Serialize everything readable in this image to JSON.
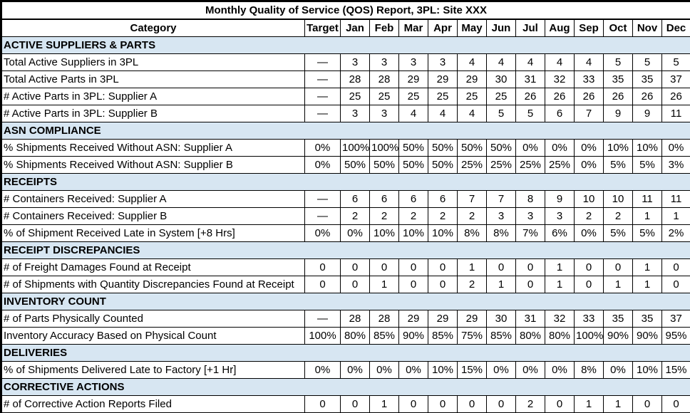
{
  "report": {
    "title": "Monthly Quality of Service (QOS) Report, 3PL: Site XXX",
    "columns": {
      "category": "Category",
      "target": "Target"
    },
    "months": [
      "Jan",
      "Feb",
      "Mar",
      "Apr",
      "May",
      "Jun",
      "Jul",
      "Aug",
      "Sep",
      "Oct",
      "Nov",
      "Dec"
    ],
    "colors": {
      "section_bg": "#D7E6F2",
      "border": "#000000",
      "background": "#FFFFFF",
      "text": "#000000"
    },
    "sections": [
      {
        "name": "ACTIVE SUPPLIERS & PARTS",
        "rows": [
          {
            "label": "Total Active Suppliers in 3PL",
            "target": "—",
            "values": [
              "3",
              "3",
              "3",
              "3",
              "4",
              "4",
              "4",
              "4",
              "4",
              "5",
              "5",
              "5"
            ]
          },
          {
            "label": "Total Active Parts in 3PL",
            "target": "—",
            "values": [
              "28",
              "28",
              "29",
              "29",
              "29",
              "30",
              "31",
              "32",
              "33",
              "35",
              "35",
              "37"
            ]
          },
          {
            "label": "# Active Parts in 3PL: Supplier A",
            "target": "—",
            "values": [
              "25",
              "25",
              "25",
              "25",
              "25",
              "25",
              "26",
              "26",
              "26",
              "26",
              "26",
              "26"
            ]
          },
          {
            "label": "# Active Parts in 3PL: Supplier B",
            "target": "—",
            "values": [
              "3",
              "3",
              "4",
              "4",
              "4",
              "5",
              "5",
              "6",
              "7",
              "9",
              "9",
              "11"
            ]
          }
        ]
      },
      {
        "name": "ASN COMPLIANCE",
        "rows": [
          {
            "label": "% Shipments Received Without ASN: Supplier A",
            "target": "0%",
            "values": [
              "100%",
              "100%",
              "50%",
              "50%",
              "50%",
              "50%",
              "0%",
              "0%",
              "0%",
              "10%",
              "10%",
              "0%"
            ]
          },
          {
            "label": "% Shipments Received Without ASN: Supplier B",
            "target": "0%",
            "values": [
              "50%",
              "50%",
              "50%",
              "50%",
              "25%",
              "25%",
              "25%",
              "25%",
              "0%",
              "5%",
              "5%",
              "3%"
            ]
          }
        ]
      },
      {
        "name": "RECEIPTS",
        "rows": [
          {
            "label": "# Containers Received: Supplier A",
            "target": "—",
            "values": [
              "6",
              "6",
              "6",
              "6",
              "7",
              "7",
              "8",
              "9",
              "10",
              "10",
              "11",
              "11"
            ]
          },
          {
            "label": "# Containers Received: Supplier B",
            "target": "—",
            "values": [
              "2",
              "2",
              "2",
              "2",
              "2",
              "3",
              "3",
              "3",
              "2",
              "2",
              "1",
              "1"
            ]
          },
          {
            "label": "% of Shipment Received Late in System [+8 Hrs]",
            "target": "0%",
            "values": [
              "0%",
              "10%",
              "10%",
              "10%",
              "8%",
              "8%",
              "7%",
              "6%",
              "0%",
              "5%",
              "5%",
              "2%"
            ]
          }
        ]
      },
      {
        "name": "RECEIPT DISCREPANCIES",
        "rows": [
          {
            "label": "# of Freight Damages Found at Receipt",
            "target": "0",
            "values": [
              "0",
              "0",
              "0",
              "0",
              "1",
              "0",
              "0",
              "1",
              "0",
              "0",
              "1",
              "0"
            ]
          },
          {
            "label": "# of Shipments with Quantity Discrepancies Found at Receipt",
            "target": "0",
            "values": [
              "0",
              "1",
              "0",
              "0",
              "2",
              "1",
              "0",
              "1",
              "0",
              "1",
              "1",
              "0"
            ]
          }
        ]
      },
      {
        "name": "INVENTORY COUNT",
        "rows": [
          {
            "label": "# of Parts Physically Counted",
            "target": "—",
            "values": [
              "28",
              "28",
              "29",
              "29",
              "29",
              "30",
              "31",
              "32",
              "33",
              "35",
              "35",
              "37"
            ]
          },
          {
            "label": "Inventory Accuracy Based on Physical Count",
            "target": "100%",
            "values": [
              "80%",
              "85%",
              "90%",
              "85%",
              "75%",
              "85%",
              "80%",
              "80%",
              "100%",
              "90%",
              "90%",
              "95%"
            ]
          }
        ]
      },
      {
        "name": "DELIVERIES",
        "rows": [
          {
            "label": "% of Shipments Delivered Late to Factory [+1 Hr]",
            "target": "0%",
            "values": [
              "0%",
              "0%",
              "0%",
              "10%",
              "15%",
              "0%",
              "0%",
              "0%",
              "8%",
              "0%",
              "10%",
              "15%"
            ]
          }
        ]
      },
      {
        "name": "CORRECTIVE ACTIONS",
        "rows": [
          {
            "label": "# of Corrective Action Reports Filed",
            "target": "0",
            "values": [
              "0",
              "1",
              "0",
              "0",
              "0",
              "0",
              "2",
              "0",
              "1",
              "1",
              "0",
              "0"
            ]
          }
        ]
      }
    ]
  }
}
